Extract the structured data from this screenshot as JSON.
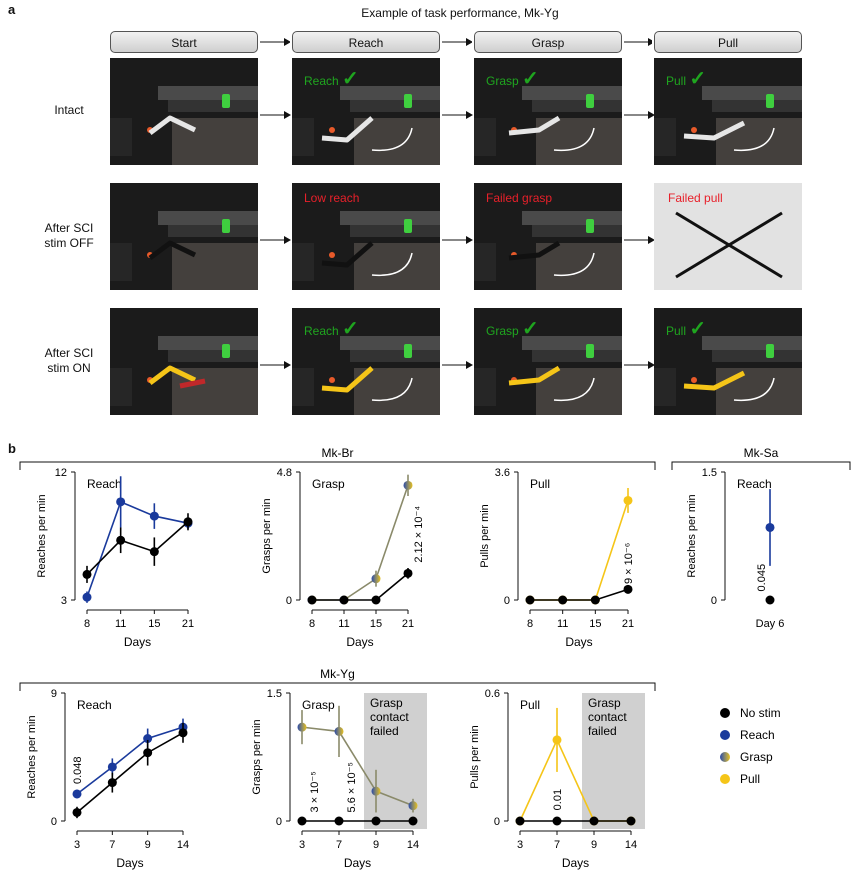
{
  "panel_a": {
    "letter": "a",
    "title": "Example of task performance, Mk-Yg",
    "stages": [
      "Start",
      "Reach",
      "Grasp",
      "Pull"
    ],
    "rows": [
      {
        "label_line1": "Intact",
        "label_line2": "",
        "cells": [
          {
            "text": "",
            "status": "none"
          },
          {
            "text": "Reach",
            "status": "ok"
          },
          {
            "text": "Grasp",
            "status": "ok"
          },
          {
            "text": "Pull",
            "status": "ok"
          }
        ],
        "limb_color": "#e6e6e6"
      },
      {
        "label_line1": "After SCI",
        "label_line2": "stim OFF",
        "cells": [
          {
            "text": "",
            "status": "none"
          },
          {
            "text": "Low reach",
            "status": "fail"
          },
          {
            "text": "Failed grasp",
            "status": "fail"
          },
          {
            "text": "Failed pull",
            "status": "failed-panel"
          }
        ],
        "limb_color": "#111111"
      },
      {
        "label_line1": "After SCI",
        "label_line2": "stim ON",
        "cells": [
          {
            "text": "",
            "status": "none"
          },
          {
            "text": "Reach",
            "status": "ok"
          },
          {
            "text": "Grasp",
            "status": "ok"
          },
          {
            "text": "Pull",
            "status": "ok"
          }
        ],
        "limb_color": "#f5c518"
      }
    ]
  },
  "panel_b": {
    "letter": "b",
    "group_top": "Mk-Br",
    "group_side": "Mk-Sa",
    "group_bottom": "Mk-Yg",
    "legend": [
      {
        "label": "No stim",
        "color": "#000000"
      },
      {
        "label": "Reach",
        "color": "#1a3a9c"
      },
      {
        "label": "Grasp",
        "color": "gradient"
      },
      {
        "label": "Pull",
        "color": "#f5c518"
      }
    ],
    "colors": {
      "nostim": "#000000",
      "reach": "#1a3a9c",
      "grasp": "#8a8a6a",
      "pull": "#f5c518",
      "shade": "#d0d0d0"
    }
  },
  "chart_data": [
    {
      "id": "br_reach",
      "type": "line",
      "subject": "Mk-Br",
      "panel_label": "Reach",
      "xlabel": "Days",
      "ylabel": "Reaches per min",
      "ylim": [
        3,
        12
      ],
      "yticks": [
        "3",
        "12"
      ],
      "categories": [
        "8",
        "11",
        "15",
        "21"
      ],
      "series": [
        {
          "name": "No stim",
          "values": [
            4.8,
            7.2,
            6.4,
            8.5
          ],
          "err": [
            0.6,
            0.9,
            1.0,
            0.6
          ]
        },
        {
          "name": "Reach",
          "values": [
            3.2,
            9.9,
            8.9,
            8.4
          ],
          "err": [
            0.4,
            1.8,
            0.9,
            0.4
          ]
        }
      ]
    },
    {
      "id": "br_grasp",
      "type": "line",
      "subject": "Mk-Br",
      "panel_label": "Grasp",
      "xlabel": "Days",
      "ylabel": "Grasps per min",
      "ylim": [
        0,
        4.8
      ],
      "yticks": [
        "0",
        "4.8"
      ],
      "categories": [
        "8",
        "11",
        "15",
        "21"
      ],
      "pvalue": "2.12 × 10⁻⁴",
      "series": [
        {
          "name": "No stim",
          "values": [
            0,
            0,
            0,
            1.0
          ],
          "err": [
            0,
            0,
            0,
            0.2
          ]
        },
        {
          "name": "Grasp",
          "values": [
            0,
            0,
            0.8,
            4.3
          ],
          "err": [
            0,
            0,
            0.3,
            0.4
          ]
        }
      ]
    },
    {
      "id": "br_pull",
      "type": "line",
      "subject": "Mk-Br",
      "panel_label": "Pull",
      "xlabel": "Days",
      "ylabel": "Pulls per min",
      "ylim": [
        0,
        3.6
      ],
      "yticks": [
        "0",
        "3.6"
      ],
      "categories": [
        "8",
        "11",
        "15",
        "21"
      ],
      "pvalue": "9 × 10⁻⁶",
      "series": [
        {
          "name": "No stim",
          "values": [
            0,
            0,
            0,
            0.3
          ],
          "err": [
            0,
            0,
            0,
            0.12
          ]
        },
        {
          "name": "Pull",
          "values": [
            0,
            0,
            0,
            2.8
          ],
          "err": [
            0,
            0,
            0,
            0.35
          ]
        }
      ]
    },
    {
      "id": "sa_reach",
      "type": "scatter",
      "subject": "Mk-Sa",
      "panel_label": "Reach",
      "xlabel": "",
      "ylabel": "Reaches per min",
      "ylim": [
        0,
        1.5
      ],
      "yticks": [
        "0",
        "1.5"
      ],
      "categories": [
        "Day 6"
      ],
      "pvalue": "0.045",
      "series": [
        {
          "name": "No stim",
          "values": [
            0
          ],
          "err": [
            0
          ]
        },
        {
          "name": "Reach",
          "values": [
            0.85
          ],
          "err": [
            0.45
          ]
        }
      ]
    },
    {
      "id": "yg_reach",
      "type": "line",
      "subject": "Mk-Yg",
      "panel_label": "Reach",
      "xlabel": "Days",
      "ylabel": "Reaches per min",
      "ylim": [
        0,
        9
      ],
      "yticks": [
        "0",
        "9"
      ],
      "categories": [
        "3",
        "7",
        "9",
        "14"
      ],
      "pvalue": "0.048",
      "series": [
        {
          "name": "No stim",
          "values": [
            0.6,
            2.7,
            4.8,
            6.2
          ],
          "err": [
            0.4,
            0.7,
            0.9,
            0.7
          ]
        },
        {
          "name": "Reach",
          "values": [
            1.9,
            3.8,
            5.8,
            6.6
          ],
          "err": [
            0.3,
            0.6,
            0.7,
            0.6
          ]
        }
      ]
    },
    {
      "id": "yg_grasp",
      "type": "line",
      "subject": "Mk-Yg",
      "panel_label": "Grasp",
      "xlabel": "Days",
      "ylabel": "Grasps per min",
      "ylim": [
        0,
        1.5
      ],
      "yticks": [
        "0",
        "1.5"
      ],
      "categories": [
        "3",
        "7",
        "9",
        "14"
      ],
      "pvalues": [
        "3 × 10⁻⁵",
        "5.6 × 10⁻⁵"
      ],
      "shaded_label": [
        "Grasp",
        "contact",
        "failed"
      ],
      "series": [
        {
          "name": "No stim",
          "values": [
            0,
            0,
            0,
            0
          ],
          "err": [
            0,
            0,
            0,
            0
          ]
        },
        {
          "name": "Grasp",
          "values": [
            1.1,
            1.05,
            0.35,
            0.18
          ],
          "err": [
            0.2,
            0.3,
            0.25,
            0.08
          ]
        }
      ]
    },
    {
      "id": "yg_pull",
      "type": "line",
      "subject": "Mk-Yg",
      "panel_label": "Pull",
      "xlabel": "Days",
      "ylabel": "Pulls per min",
      "ylim": [
        0,
        0.6
      ],
      "yticks": [
        "0",
        "0.6"
      ],
      "categories": [
        "3",
        "7",
        "9",
        "14"
      ],
      "pvalue": "0.01",
      "shaded_label": [
        "Grasp",
        "contact",
        "failed"
      ],
      "series": [
        {
          "name": "No stim",
          "values": [
            0,
            0,
            0,
            0
          ],
          "err": [
            0,
            0,
            0,
            0
          ]
        },
        {
          "name": "Pull",
          "values": [
            0,
            0.38,
            0,
            0
          ],
          "err": [
            0,
            0.15,
            0,
            0
          ]
        }
      ]
    }
  ]
}
